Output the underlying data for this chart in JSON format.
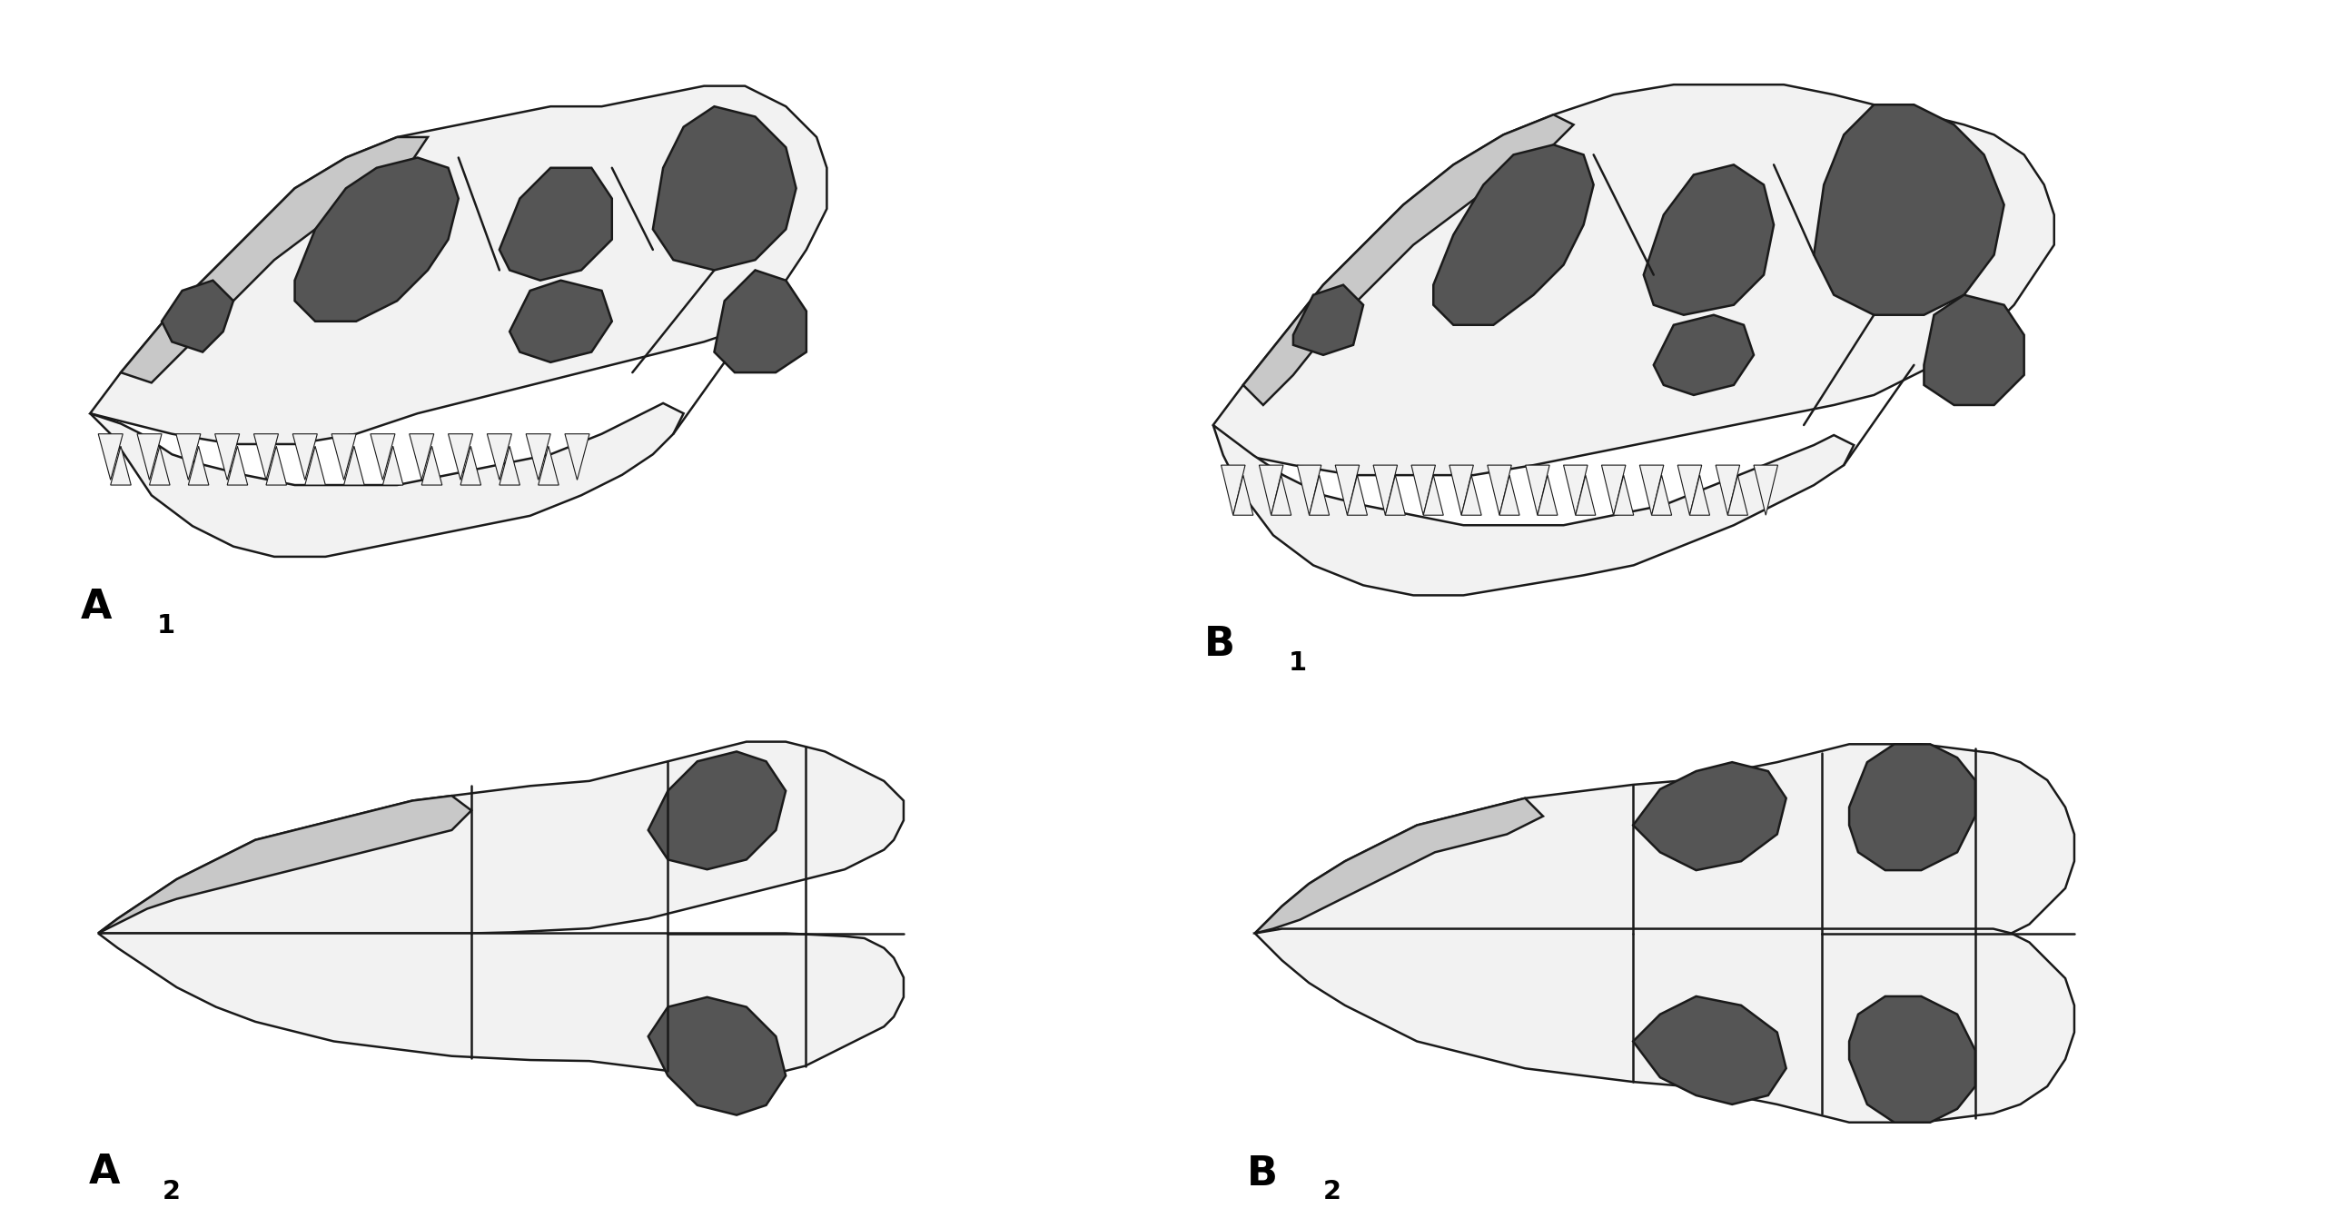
{
  "background_color": "#ffffff",
  "outline_color": "#1a1a1a",
  "dark_fill": "#555555",
  "light_fill": "#c8c8c8",
  "white_fill": "#f2f2f2",
  "lw": 1.8,
  "label_fontsize": 32
}
